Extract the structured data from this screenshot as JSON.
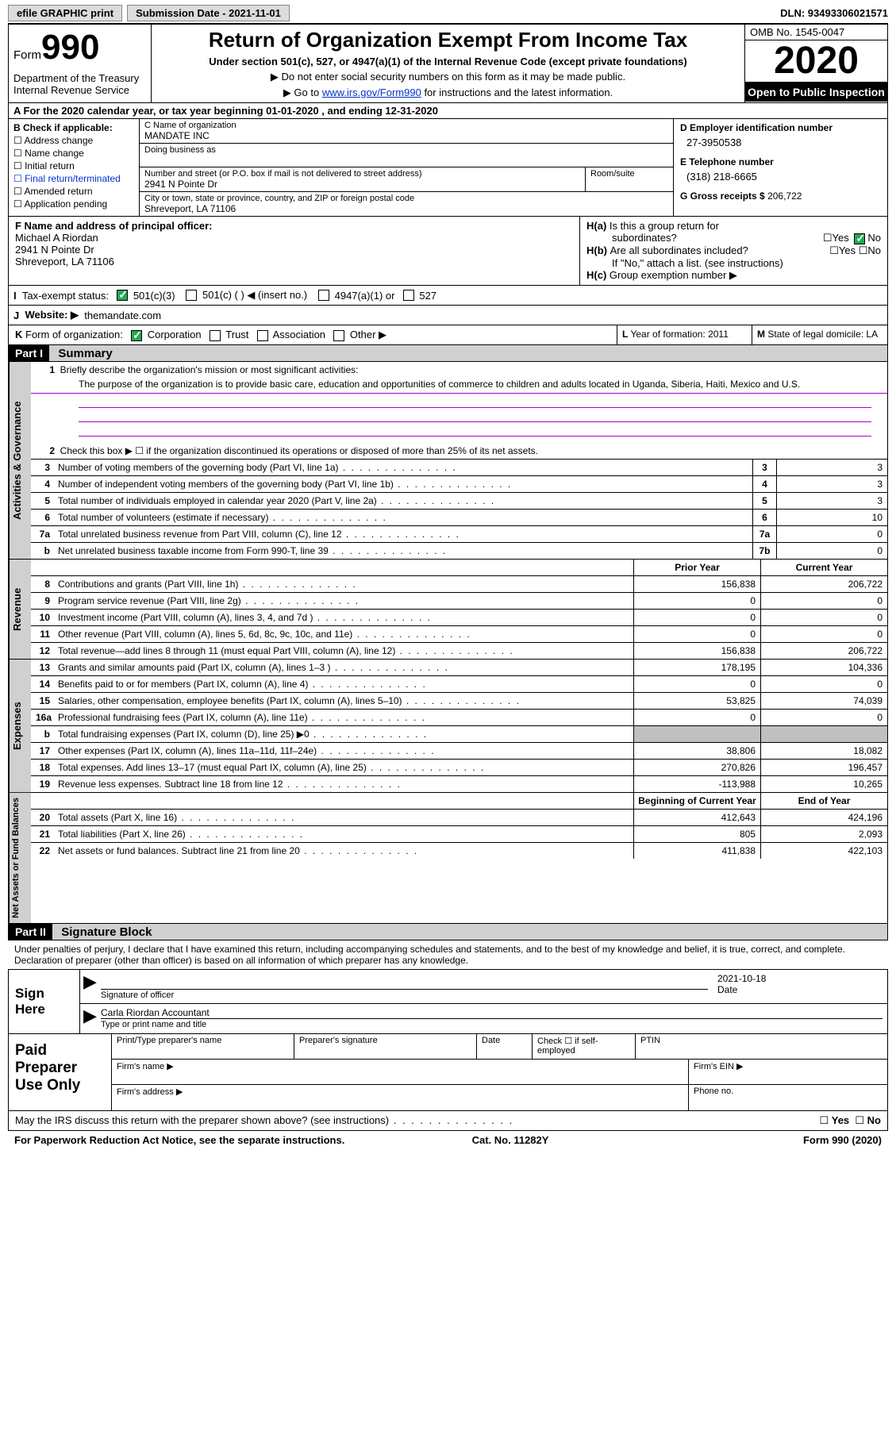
{
  "topbar": {
    "efile": "efile GRAPHIC print",
    "submission": "Submission Date - 2021-11-01",
    "dln": "DLN: 93493306021571"
  },
  "header": {
    "form_label": "Form",
    "form_num": "990",
    "dept": "Department of the Treasury\nInternal Revenue Service",
    "title": "Return of Organization Exempt From Income Tax",
    "subtitle": "Under section 501(c), 527, or 4947(a)(1) of the Internal Revenue Code (except private foundations)",
    "note1": "Do not enter social security numbers on this form as it may be made public.",
    "note2_pre": "Go to ",
    "note2_link": "www.irs.gov/Form990",
    "note2_post": " for instructions and the latest information.",
    "omb": "OMB No. 1545-0047",
    "year": "2020",
    "inspect": "Open to Public Inspection"
  },
  "line_a": "For the 2020 calendar year, or tax year beginning 01-01-2020   , and ending 12-31-2020",
  "block_b": {
    "label": "B Check if applicable:",
    "items": [
      "Address change",
      "Name change",
      "Initial return",
      "Final return/terminated",
      "Amended return",
      "Application pending"
    ]
  },
  "block_c": {
    "name_label": "C Name of organization",
    "name": "MANDATE INC",
    "dba_label": "Doing business as",
    "addr_label": "Number and street (or P.O. box if mail is not delivered to street address)",
    "room_label": "Room/suite",
    "addr": "2941 N Pointe Dr",
    "city_label": "City or town, state or province, country, and ZIP or foreign postal code",
    "city": "Shreveport, LA  71106"
  },
  "block_d": {
    "ein_label": "D Employer identification number",
    "ein": "27-3950538",
    "tel_label": "E Telephone number",
    "tel": "(318) 218-6665",
    "gross_label": "G Gross receipts $",
    "gross": "206,722"
  },
  "block_f": {
    "label": "F Name and address of principal officer:",
    "name": "Michael A Riordan",
    "addr": "2941 N Pointe Dr",
    "city": "Shreveport, LA  71106"
  },
  "block_h": {
    "ha_label": "Is this a group return for",
    "ha_sub": "subordinates?",
    "hb_label": "Are all subordinates included?",
    "hb_note": "If \"No,\" attach a list. (see instructions)",
    "hc_label": "Group exemption number ▶"
  },
  "tax_status": {
    "label": "Tax-exempt status:",
    "o1": "501(c)(3)",
    "o2": "501(c) (  ) ◀ (insert no.)",
    "o3": "4947(a)(1) or",
    "o4": "527"
  },
  "website": {
    "label": "Website: ▶",
    "val": "themandate.com"
  },
  "line_k": "Form of organization:",
  "k_opts": [
    "Corporation",
    "Trust",
    "Association",
    "Other ▶"
  ],
  "line_l": "Year of formation: 2011",
  "line_m": "State of legal domicile: LA",
  "part1": {
    "hdr": "Part I",
    "title": "Summary"
  },
  "gov": {
    "tab": "Activities & Governance",
    "l1_label": "Briefly describe the organization's mission or most significant activities:",
    "l1_text": "The purpose of the organization is to provide basic care, education and opportunities of commerce to children and adults located in Uganda, Siberia, Haiti, Mexico and U.S.",
    "l2": "Check this box ▶ ☐  if the organization discontinued its operations or disposed of more than 25% of its net assets.",
    "rows": [
      {
        "n": "3",
        "t": "Number of voting members of the governing body (Part VI, line 1a)",
        "b": "3",
        "v": "3"
      },
      {
        "n": "4",
        "t": "Number of independent voting members of the governing body (Part VI, line 1b)",
        "b": "4",
        "v": "3"
      },
      {
        "n": "5",
        "t": "Total number of individuals employed in calendar year 2020 (Part V, line 2a)",
        "b": "5",
        "v": "3"
      },
      {
        "n": "6",
        "t": "Total number of volunteers (estimate if necessary)",
        "b": "6",
        "v": "10"
      },
      {
        "n": "7a",
        "t": "Total unrelated business revenue from Part VIII, column (C), line 12",
        "b": "7a",
        "v": "0"
      },
      {
        "n": "b",
        "t": "Net unrelated business taxable income from Form 990-T, line 39",
        "b": "7b",
        "v": "0"
      }
    ]
  },
  "cols": {
    "prior": "Prior Year",
    "current": "Current Year",
    "begin": "Beginning of Current Year",
    "end": "End of Year"
  },
  "revenue": {
    "tab": "Revenue",
    "rows": [
      {
        "n": "8",
        "t": "Contributions and grants (Part VIII, line 1h)",
        "p": "156,838",
        "c": "206,722"
      },
      {
        "n": "9",
        "t": "Program service revenue (Part VIII, line 2g)",
        "p": "0",
        "c": "0"
      },
      {
        "n": "10",
        "t": "Investment income (Part VIII, column (A), lines 3, 4, and 7d )",
        "p": "0",
        "c": "0"
      },
      {
        "n": "11",
        "t": "Other revenue (Part VIII, column (A), lines 5, 6d, 8c, 9c, 10c, and 11e)",
        "p": "0",
        "c": "0"
      },
      {
        "n": "12",
        "t": "Total revenue—add lines 8 through 11 (must equal Part VIII, column (A), line 12)",
        "p": "156,838",
        "c": "206,722"
      }
    ]
  },
  "expenses": {
    "tab": "Expenses",
    "rows": [
      {
        "n": "13",
        "t": "Grants and similar amounts paid (Part IX, column (A), lines 1–3 )",
        "p": "178,195",
        "c": "104,336"
      },
      {
        "n": "14",
        "t": "Benefits paid to or for members (Part IX, column (A), line 4)",
        "p": "0",
        "c": "0"
      },
      {
        "n": "15",
        "t": "Salaries, other compensation, employee benefits (Part IX, column (A), lines 5–10)",
        "p": "53,825",
        "c": "74,039"
      },
      {
        "n": "16a",
        "t": "Professional fundraising fees (Part IX, column (A), line 11e)",
        "p": "0",
        "c": "0"
      },
      {
        "n": "b",
        "t": "Total fundraising expenses (Part IX, column (D), line 25) ▶0",
        "p": "",
        "c": "",
        "grey": true
      },
      {
        "n": "17",
        "t": "Other expenses (Part IX, column (A), lines 11a–11d, 11f–24e)",
        "p": "38,806",
        "c": "18,082"
      },
      {
        "n": "18",
        "t": "Total expenses. Add lines 13–17 (must equal Part IX, column (A), line 25)",
        "p": "270,826",
        "c": "196,457"
      },
      {
        "n": "19",
        "t": "Revenue less expenses. Subtract line 18 from line 12",
        "p": "-113,988",
        "c": "10,265"
      }
    ]
  },
  "netassets": {
    "tab": "Net Assets or Fund Balances",
    "rows": [
      {
        "n": "20",
        "t": "Total assets (Part X, line 16)",
        "p": "412,643",
        "c": "424,196"
      },
      {
        "n": "21",
        "t": "Total liabilities (Part X, line 26)",
        "p": "805",
        "c": "2,093"
      },
      {
        "n": "22",
        "t": "Net assets or fund balances. Subtract line 21 from line 20",
        "p": "411,838",
        "c": "422,103"
      }
    ]
  },
  "part2": {
    "hdr": "Part II",
    "title": "Signature Block"
  },
  "sig": {
    "intro": "Under penalties of perjury, I declare that I have examined this return, including accompanying schedules and statements, and to the best of my knowledge and belief, it is true, correct, and complete. Declaration of preparer (other than officer) is based on all information of which preparer has any knowledge.",
    "here": "Sign Here",
    "officer": "Signature of officer",
    "date": "Date",
    "date_val": "2021-10-18",
    "name": "Carla Riordan  Accountant",
    "name_lbl": "Type or print name and title"
  },
  "prep": {
    "label": "Paid Preparer Use Only",
    "h1": "Print/Type preparer's name",
    "h2": "Preparer's signature",
    "h3": "Date",
    "h4": "Check ☐ if self-employed",
    "h5": "PTIN",
    "firm": "Firm's name  ▶",
    "ein": "Firm's EIN ▶",
    "addr": "Firm's address ▶",
    "phone": "Phone no."
  },
  "footer": {
    "may": "May the IRS discuss this return with the preparer shown above? (see instructions)",
    "paperwork": "For Paperwork Reduction Act Notice, see the separate instructions.",
    "cat": "Cat. No. 11282Y",
    "form": "Form 990 (2020)"
  }
}
